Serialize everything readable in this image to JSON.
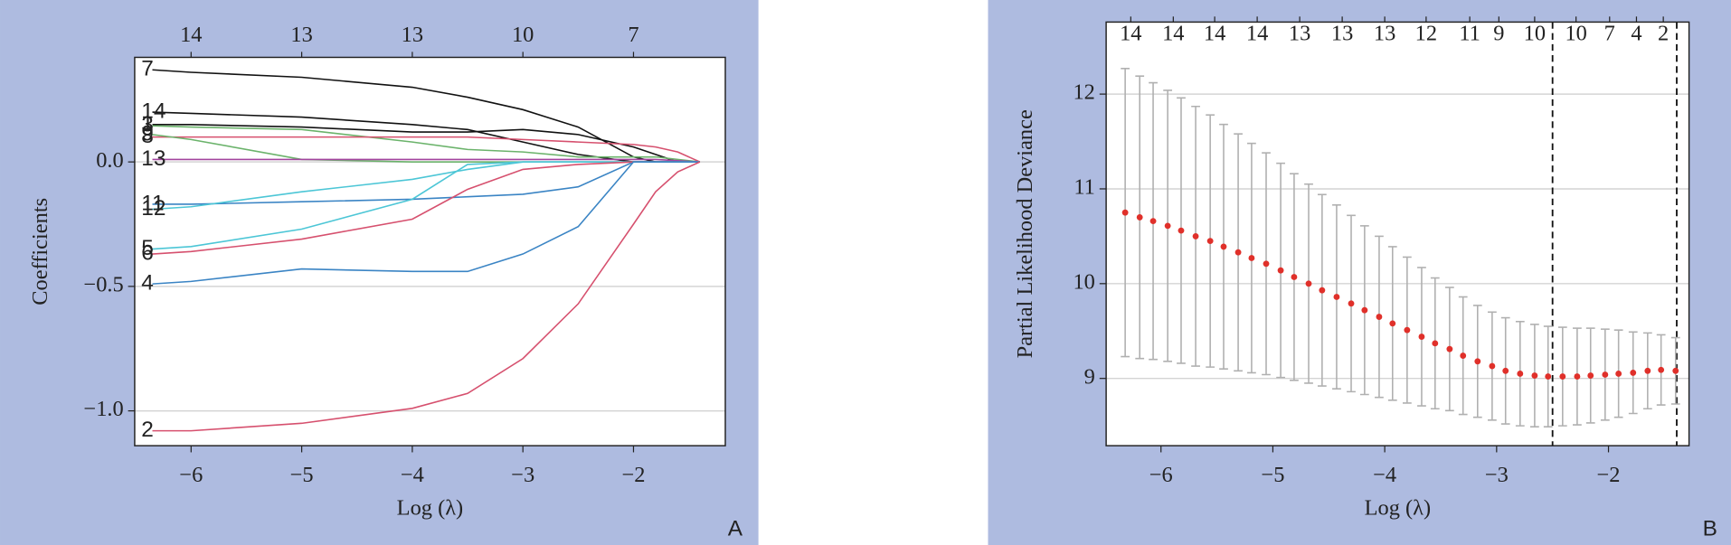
{
  "chart_data": [
    {
      "type": "line",
      "x_label": "Log (λ)",
      "y_label": "Coefficients",
      "panel_label": "A",
      "xlim": [
        -6.51,
        -1.17
      ],
      "ylim": [
        -1.14,
        0.42
      ],
      "grid": true,
      "xticks": [
        {
          "value": -6,
          "label": "−6"
        },
        {
          "value": -5,
          "label": "−5"
        },
        {
          "value": -4,
          "label": "−4"
        },
        {
          "value": -3,
          "label": "−3"
        },
        {
          "value": -2,
          "label": "−2"
        }
      ],
      "yticks": [
        {
          "value": -1,
          "label": "−1.0"
        },
        {
          "value": -0.5,
          "label": "−0.5"
        },
        {
          "value": 0,
          "label": "0.0"
        }
      ],
      "top_ticks": [
        {
          "value": -6,
          "label": "14"
        },
        {
          "value": -5,
          "label": "13"
        },
        {
          "value": -4,
          "label": "13"
        },
        {
          "value": -3,
          "label": "10"
        },
        {
          "value": -2,
          "label": "7"
        }
      ],
      "x": [
        -6.35,
        -6,
        -5,
        -4,
        -3.5,
        -3,
        -2.5,
        -2,
        -1.8,
        -1.6,
        -1.4
      ],
      "series": [
        {
          "name": "7",
          "color": "#111111",
          "values": [
            0.37,
            0.36,
            0.34,
            0.3,
            0.26,
            0.21,
            0.14,
            0.02,
            0,
            0,
            0
          ]
        },
        {
          "name": "14",
          "color": "#111111",
          "values": [
            0.2,
            0.195,
            0.18,
            0.15,
            0.13,
            0.08,
            0.03,
            0,
            0,
            0,
            0
          ]
        },
        {
          "name": "1",
          "color": "#111111",
          "values": [
            0.15,
            0.15,
            0.14,
            0.12,
            0.12,
            0.13,
            0.11,
            0.06,
            0.03,
            0,
            0
          ]
        },
        {
          "name": "3",
          "color": "#6bb36b",
          "values": [
            0.145,
            0.14,
            0.13,
            0.08,
            0.05,
            0.04,
            0.02,
            0.02,
            0.02,
            0.01,
            0
          ]
        },
        {
          "name": "8",
          "color": "#d6506e",
          "values": [
            0.1,
            0.1,
            0.1,
            0.1,
            0.1,
            0.09,
            0.08,
            0.07,
            0.06,
            0.04,
            0
          ]
        },
        {
          "name": "9",
          "color": "#6bb36b",
          "values": [
            0.11,
            0.09,
            0.01,
            0,
            0,
            0,
            0,
            0,
            0,
            0,
            0
          ]
        },
        {
          "name": "13",
          "color": "#a3449e",
          "values": [
            0.01,
            0.01,
            0.01,
            0.01,
            0.01,
            0.01,
            0.01,
            0.01,
            0.01,
            0.005,
            0
          ]
        },
        {
          "name": "11",
          "color": "#3a84c4",
          "values": [
            -0.17,
            -0.17,
            -0.16,
            -0.15,
            -0.14,
            -0.13,
            -0.1,
            0,
            0,
            0,
            0
          ]
        },
        {
          "name": "12",
          "color": "#4cc6d6",
          "values": [
            -0.19,
            -0.18,
            -0.12,
            -0.07,
            -0.03,
            0,
            0,
            0,
            0,
            0,
            0
          ]
        },
        {
          "name": "5",
          "color": "#4cc6d6",
          "values": [
            -0.35,
            -0.34,
            -0.27,
            -0.15,
            -0.01,
            0,
            0,
            0,
            0,
            0,
            0
          ]
        },
        {
          "name": "6",
          "color": "#d6506e",
          "values": [
            -0.37,
            -0.36,
            -0.31,
            -0.23,
            -0.11,
            -0.03,
            -0.01,
            0,
            0,
            0,
            0
          ]
        },
        {
          "name": "4",
          "color": "#3a84c4",
          "values": [
            -0.49,
            -0.48,
            -0.43,
            -0.44,
            -0.44,
            -0.37,
            -0.26,
            0,
            0,
            0,
            0
          ]
        },
        {
          "name": "2",
          "color": "#d6506e",
          "values": [
            -1.08,
            -1.08,
            -1.05,
            -0.99,
            -0.93,
            -0.79,
            -0.57,
            -0.25,
            -0.12,
            -0.04,
            0
          ]
        }
      ]
    },
    {
      "type": "errorbar",
      "x_label": "Log (λ)",
      "y_label": "Partial Likelihood Deviance",
      "panel_label": "B",
      "xlim": [
        -6.49,
        -1.28
      ],
      "ylim": [
        8.29,
        12.76
      ],
      "grid": true,
      "color": "#e0302a",
      "error_color": "#b0b0b0",
      "xticks": [
        {
          "value": -6,
          "label": "−6"
        },
        {
          "value": -5,
          "label": "−5"
        },
        {
          "value": -4,
          "label": "−4"
        },
        {
          "value": -3,
          "label": "−3"
        },
        {
          "value": -2,
          "label": "−2"
        }
      ],
      "yticks": [
        9,
        10,
        11,
        12
      ],
      "top_ticks": [
        {
          "value": -6.27,
          "label": "14"
        },
        {
          "value": -5.89,
          "label": "14"
        },
        {
          "value": -5.52,
          "label": "14"
        },
        {
          "value": -5.14,
          "label": "14"
        },
        {
          "value": -4.76,
          "label": "13"
        },
        {
          "value": -4.38,
          "label": "13"
        },
        {
          "value": -4.0,
          "label": "13"
        },
        {
          "value": -3.63,
          "label": "12"
        },
        {
          "value": -3.24,
          "label": "11"
        },
        {
          "value": -2.98,
          "label": "9"
        },
        {
          "value": -2.66,
          "label": "10"
        },
        {
          "value": -2.29,
          "label": "10"
        },
        {
          "value": -1.99,
          "label": "7"
        },
        {
          "value": -1.75,
          "label": "4"
        },
        {
          "value": -1.51,
          "label": "2"
        }
      ],
      "vlines": [
        -2.5,
        -1.39
      ],
      "x": [
        -6.32,
        -6.19,
        -6.07,
        -5.94,
        -5.82,
        -5.69,
        -5.56,
        -5.44,
        -5.31,
        -5.19,
        -5.06,
        -4.93,
        -4.81,
        -4.68,
        -4.56,
        -4.43,
        -4.3,
        -4.18,
        -4.05,
        -3.93,
        -3.8,
        -3.67,
        -3.55,
        -3.42,
        -3.3,
        -3.17,
        -3.04,
        -2.92,
        -2.79,
        -2.66,
        -2.54,
        -2.41,
        -2.28,
        -2.16,
        -2.03,
        -1.91,
        -1.78,
        -1.65,
        -1.53,
        -1.4
      ],
      "values": [
        10.75,
        10.7,
        10.66,
        10.61,
        10.56,
        10.5,
        10.45,
        10.39,
        10.33,
        10.27,
        10.21,
        10.14,
        10.07,
        10.0,
        9.93,
        9.86,
        9.79,
        9.72,
        9.65,
        9.58,
        9.51,
        9.44,
        9.37,
        9.31,
        9.24,
        9.18,
        9.13,
        9.08,
        9.05,
        9.03,
        9.02,
        9.02,
        9.02,
        9.03,
        9.04,
        9.05,
        9.06,
        9.08,
        9.09,
        9.08
      ],
      "errors": [
        1.52,
        1.49,
        1.46,
        1.43,
        1.4,
        1.37,
        1.33,
        1.29,
        1.25,
        1.21,
        1.17,
        1.13,
        1.09,
        1.05,
        1.01,
        0.97,
        0.93,
        0.89,
        0.85,
        0.81,
        0.77,
        0.73,
        0.69,
        0.65,
        0.62,
        0.59,
        0.57,
        0.56,
        0.55,
        0.54,
        0.53,
        0.52,
        0.51,
        0.5,
        0.48,
        0.46,
        0.43,
        0.4,
        0.37,
        0.35
      ]
    }
  ]
}
